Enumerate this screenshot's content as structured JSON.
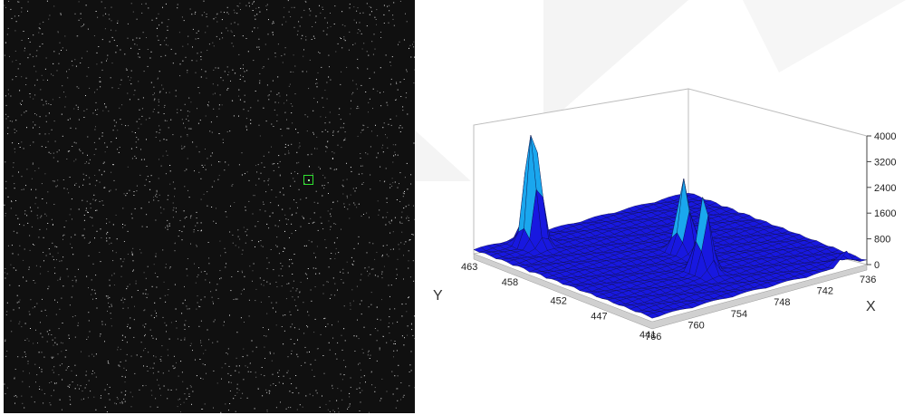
{
  "chart_data": {
    "type": "surface",
    "title": "",
    "xlabel": "X",
    "ylabel": "Y",
    "zlabel": "",
    "x_ticks": [
      "766",
      "760",
      "754",
      "748",
      "742",
      "736"
    ],
    "y_ticks": [
      "463",
      "458",
      "452",
      "447",
      "441"
    ],
    "z_ticks": [
      "0",
      "800",
      "1600",
      "2400",
      "3200",
      "4000"
    ],
    "xlim": [
      766,
      736
    ],
    "ylim": [
      463,
      441
    ],
    "zlim": [
      0,
      4000
    ],
    "surface_color": "#1818e0",
    "highlight_color": "#1aa7ee",
    "base_level": 150,
    "peaks": [
      {
        "x": 760,
        "y": 461,
        "z": 4000
      },
      {
        "x": 752,
        "y": 447,
        "z": 2400
      },
      {
        "x": 749,
        "y": 452,
        "z": 2300
      },
      {
        "x": 739,
        "y": 441,
        "z": 500
      }
    ]
  },
  "ccd_image": {
    "background_color": "#101010",
    "roi_color": "#2fe02f"
  }
}
